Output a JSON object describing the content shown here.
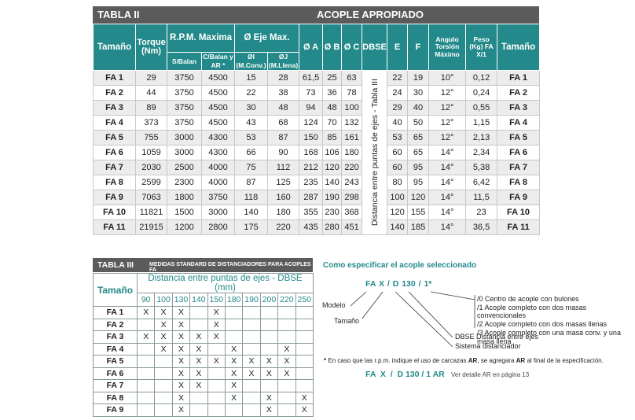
{
  "table_ii": {
    "label": "TABLA II",
    "title": "ACOPLE APROPIADO",
    "header_top": [
      "Tamaño",
      "Torque (Nm)",
      "R.P.M. Maxima",
      "Ø Eje Max.",
      "Ø A",
      "Ø B",
      "Ø C",
      "DBSE",
      "E",
      "F",
      "Angulo Torsión Máximo",
      "Peso (Kg) FA X/1",
      "Tamaño"
    ],
    "header_sub": [
      "S/Balan",
      "C/Balan y AR *",
      "ØI (M.Conv.)",
      "ØJ (M.Llena)"
    ],
    "dbse_note": "Distancia entre puntas de ejes - Tabla III",
    "rows": [
      [
        "FA 1",
        "29",
        "3750",
        "4500",
        "15",
        "28",
        "61,5",
        "25",
        "63",
        "22",
        "19",
        "10°",
        "0,12",
        "FA 1"
      ],
      [
        "FA 2",
        "44",
        "3750",
        "4500",
        "22",
        "38",
        "73",
        "36",
        "78",
        "24",
        "30",
        "12°",
        "0,24",
        "FA 2"
      ],
      [
        "FA 3",
        "89",
        "3750",
        "4500",
        "30",
        "48",
        "94",
        "48",
        "100",
        "29",
        "40",
        "12°",
        "0,55",
        "FA 3"
      ],
      [
        "FA 4",
        "373",
        "3750",
        "4500",
        "43",
        "68",
        "124",
        "70",
        "132",
        "40",
        "50",
        "12°",
        "1,15",
        "FA 4"
      ],
      [
        "FA 5",
        "755",
        "3000",
        "4300",
        "53",
        "87",
        "150",
        "85",
        "161",
        "53",
        "65",
        "12°",
        "2,13",
        "FA 5"
      ],
      [
        "FA 6",
        "1059",
        "3000",
        "4300",
        "66",
        "90",
        "168",
        "106",
        "180",
        "60",
        "65",
        "14°",
        "2,34",
        "FA 6"
      ],
      [
        "FA 7",
        "2030",
        "2500",
        "4000",
        "75",
        "112",
        "212",
        "120",
        "220",
        "60",
        "95",
        "14°",
        "5,38",
        "FA 7"
      ],
      [
        "FA 8",
        "2599",
        "2300",
        "4000",
        "87",
        "125",
        "235",
        "140",
        "243",
        "80",
        "95",
        "14°",
        "6,42",
        "FA 8"
      ],
      [
        "FA 9",
        "7063",
        "1800",
        "3750",
        "118",
        "160",
        "287",
        "190",
        "298",
        "100",
        "120",
        "14°",
        "11,5",
        "FA 9"
      ],
      [
        "FA 10",
        "11821",
        "1500",
        "3000",
        "140",
        "180",
        "355",
        "230",
        "368",
        "120",
        "155",
        "14°",
        "23",
        "FA 10"
      ],
      [
        "FA 11",
        "21915",
        "1200",
        "2800",
        "175",
        "220",
        "435",
        "280",
        "451",
        "140",
        "185",
        "14°",
        "36,5",
        "FA 11"
      ]
    ]
  },
  "table_iii": {
    "label": "TABLA III",
    "title": "MEDIDAS STANDARD DE DISTANCIADORES PARA ACOPLES FA",
    "header_size": "Tamaño",
    "header_dist": "Distancia entre puntas de ejes - DBSE (mm)",
    "distances": [
      "90",
      "100",
      "130",
      "140",
      "150",
      "180",
      "190",
      "200",
      "220",
      "250"
    ],
    "rows": [
      [
        "FA 1",
        "X",
        "X",
        "X",
        null,
        "X",
        null,
        null,
        null,
        null,
        null
      ],
      [
        "FA 2",
        null,
        "X",
        "X",
        null,
        "X",
        null,
        null,
        null,
        null,
        null
      ],
      [
        "FA 3",
        "X",
        "X",
        "X",
        "X",
        "X",
        null,
        null,
        null,
        null,
        null
      ],
      [
        "FA 4",
        null,
        "X",
        "X",
        "X",
        null,
        "X",
        null,
        null,
        "X",
        null
      ],
      [
        "FA 5",
        null,
        null,
        "X",
        "X",
        "X",
        "X",
        "X",
        "X",
        "X",
        null
      ],
      [
        "FA 6",
        null,
        null,
        "X",
        "X",
        null,
        "X",
        "X",
        "X",
        "X",
        null
      ],
      [
        "FA 7",
        null,
        null,
        "X",
        "X",
        null,
        "X",
        null,
        null,
        null,
        null
      ],
      [
        "FA 8",
        null,
        null,
        "X",
        null,
        null,
        "X",
        null,
        "X",
        null,
        "X"
      ],
      [
        "FA 9",
        null,
        null,
        "X",
        null,
        null,
        null,
        null,
        "X",
        null,
        "X"
      ]
    ]
  },
  "spec": {
    "title": "Como especificar el acople seleccionado",
    "code": "FA X / D 130 / 1*",
    "model": "Modelo",
    "size": "Tamaño",
    "options": [
      "/0 Centro de acople con bulones",
      "/1 Acople completo con dos masas convencionales",
      "/2 Acople completo con dos masas llenas",
      "/3 Acople completo con una masa conv. y una masa llena"
    ],
    "dbse": "DBSE Distancia entre ejes",
    "system": "Sistema distanciador",
    "note": [
      "*",
      "En caso que las r.p.m. indique el uso de carcazas",
      "AR",
      ",  se agregara",
      "AR",
      "al final de la especificación."
    ],
    "example": "FA  X  /  D 130 / 1 AR",
    "example_note": "Ver detalle AR en página 13"
  }
}
